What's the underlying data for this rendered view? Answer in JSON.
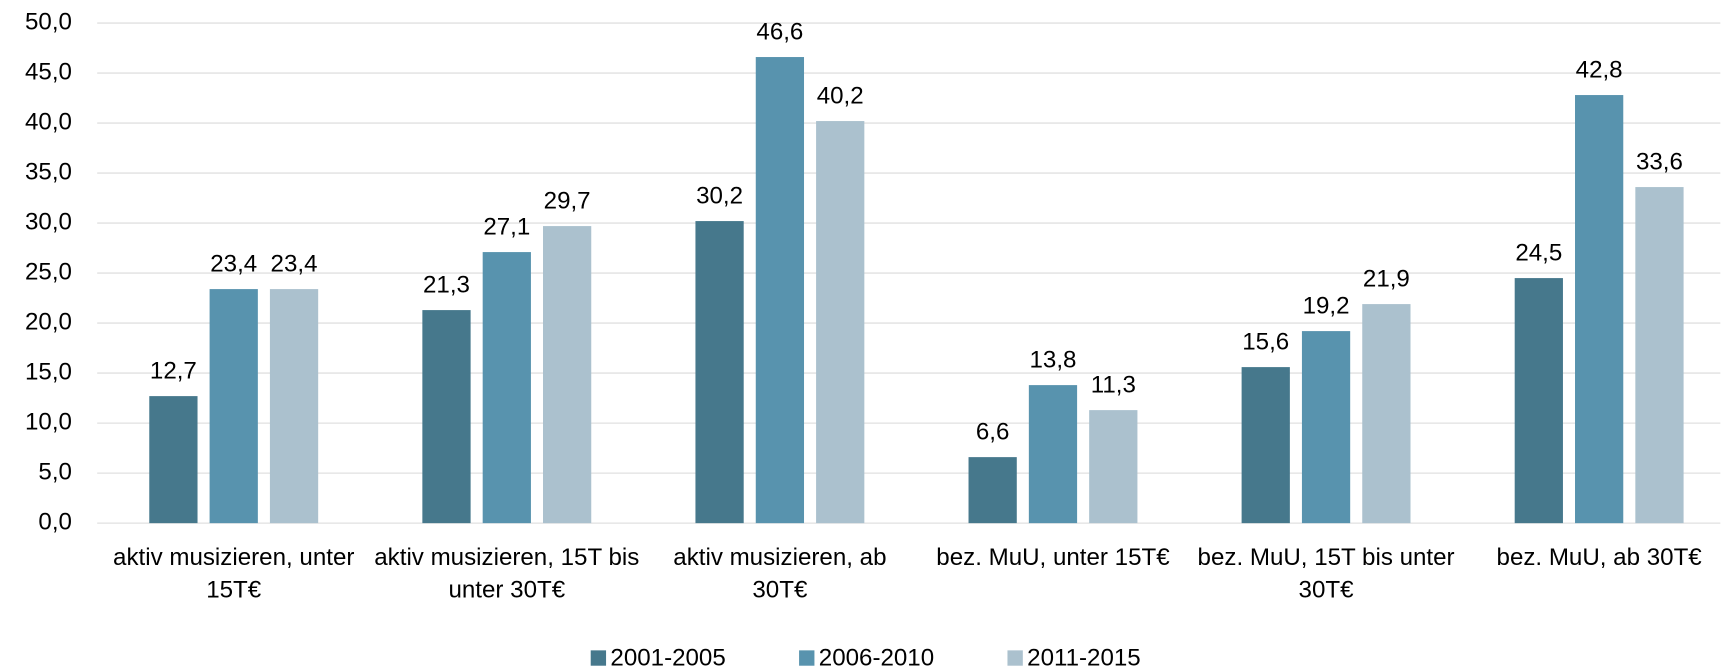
{
  "chart_data": {
    "type": "bar",
    "categories": [
      "aktiv musizieren, unter 15T€",
      "aktiv musizieren, 15T bis unter 30T€",
      "aktiv musizieren, ab 30T€",
      "bez. MuU, unter 15T€",
      "bez. MuU, 15T bis unter 30T€",
      "bez. MuU, ab 30T€"
    ],
    "series": [
      {
        "name": "2001-2005",
        "color": "#46788c",
        "values": [
          12.7,
          21.3,
          30.2,
          6.6,
          15.6,
          24.5
        ],
        "value_labels": [
          "12,7",
          "21,3",
          "30,2",
          "6,6",
          "15,6",
          "24,5"
        ]
      },
      {
        "name": "2006-2010",
        "color": "#5893ae",
        "values": [
          23.4,
          27.1,
          46.6,
          13.8,
          19.2,
          42.8
        ],
        "value_labels": [
          "23,4",
          "27,1",
          "46,6",
          "13,8",
          "19,2",
          "42,8"
        ]
      },
      {
        "name": "2011-2015",
        "color": "#abc1ce",
        "values": [
          23.4,
          29.7,
          40.2,
          11.3,
          21.9,
          33.6
        ],
        "value_labels": [
          "23,4",
          "29,7",
          "40,2",
          "11,3",
          "21,9",
          "33,6"
        ]
      }
    ],
    "ylim": [
      0,
      50
    ],
    "yticks": [
      {
        "value": 0,
        "label": "0,0"
      },
      {
        "value": 5,
        "label": "5,0"
      },
      {
        "value": 10,
        "label": "10,0"
      },
      {
        "value": 15,
        "label": "15,0"
      },
      {
        "value": 20,
        "label": "20,0"
      },
      {
        "value": 25,
        "label": "25,0"
      },
      {
        "value": 30,
        "label": "30,0"
      },
      {
        "value": 35,
        "label": "35,0"
      },
      {
        "value": 40,
        "label": "40,0"
      },
      {
        "value": 45,
        "label": "45,0"
      },
      {
        "value": 50,
        "label": "50,0"
      }
    ],
    "grid": true,
    "legend": "bottom"
  }
}
